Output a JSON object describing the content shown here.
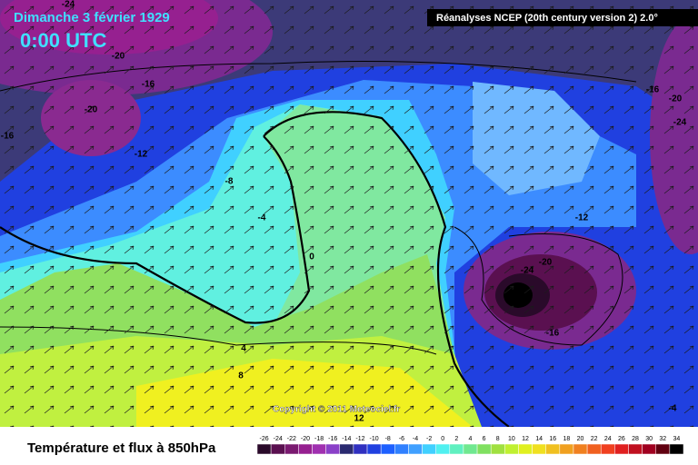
{
  "header": {
    "date": "Dimanche 3 février 1929",
    "time": "0:00 UTC",
    "source": "Réanalyses NCEP (20th century version 2) 2.0°"
  },
  "copyright": "Copyright © 2011 Meteociel.fr",
  "legend": {
    "title": "Température et flux à 850hPa",
    "ticks": [
      -26,
      -24,
      -22,
      -20,
      -18,
      -16,
      -14,
      -12,
      -10,
      -8,
      -6,
      -4,
      -2,
      0,
      2,
      4,
      6,
      8,
      10,
      12,
      14,
      16,
      18,
      20,
      22,
      24,
      26,
      28,
      30,
      32,
      34
    ],
    "colors": [
      "#2a0a2a",
      "#5a1050",
      "#7a1a70",
      "#962090",
      "#a030b0",
      "#8a40c8",
      "#2a2a70",
      "#3030c0",
      "#2040e0",
      "#1e60ff",
      "#3080ff",
      "#40a0ff",
      "#40d0ff",
      "#50f0f0",
      "#60f0c0",
      "#70e890",
      "#80e060",
      "#a0e040",
      "#c0f030",
      "#e0f020",
      "#f0e020",
      "#f0c020",
      "#f0a020",
      "#f08020",
      "#f06020",
      "#f04020",
      "#e02020",
      "#c01020",
      "#a00020",
      "#600010",
      "#000000"
    ]
  },
  "contour_labels": [
    -24,
    -20,
    -16,
    -20,
    -16,
    -12,
    -8,
    -4,
    0,
    4,
    8,
    12,
    -16,
    -20,
    -24,
    -20,
    -24,
    -12,
    -16,
    -4
  ]
}
